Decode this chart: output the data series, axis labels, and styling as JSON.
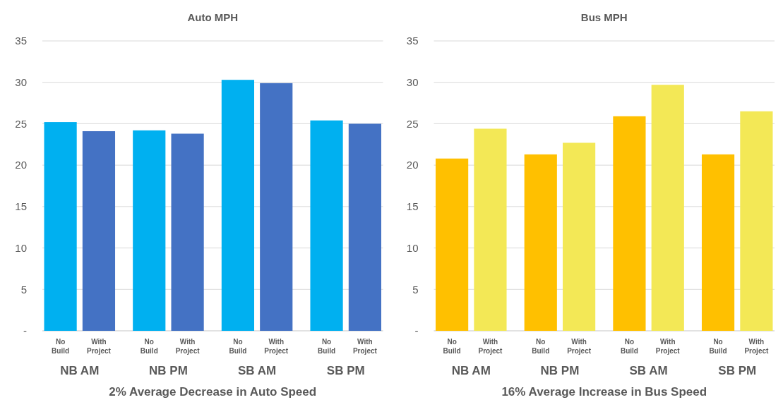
{
  "chart_data": [
    {
      "type": "bar",
      "title": "Auto MPH",
      "categories": [
        "NB AM",
        "NB PM",
        "SB AM",
        "SB PM"
      ],
      "series": [
        {
          "name": "No Build",
          "color": "#00b0f0",
          "values": [
            25.2,
            24.2,
            30.3,
            25.4
          ]
        },
        {
          "name": "With Project",
          "color": "#4472c4",
          "values": [
            24.1,
            23.8,
            29.9,
            25.0
          ]
        }
      ],
      "ylim": [
        0,
        35
      ],
      "yticks": [
        {
          "value": 0,
          "label": "-"
        },
        5,
        10,
        15,
        20,
        25,
        30,
        35
      ],
      "grid": "y",
      "legend": false,
      "annotations": [
        "2% Average Decrease in Auto Speed"
      ]
    },
    {
      "type": "bar",
      "title": "Bus MPH",
      "categories": [
        "NB AM",
        "NB PM",
        "SB AM",
        "SB PM"
      ],
      "series": [
        {
          "name": "No Build",
          "color": "#ffc000",
          "values": [
            20.8,
            21.3,
            25.9,
            21.3
          ]
        },
        {
          "name": "With Project",
          "color": "#f3e856",
          "values": [
            24.4,
            22.7,
            29.7,
            26.5
          ]
        }
      ],
      "ylim": [
        0,
        35
      ],
      "yticks": [
        {
          "value": 0,
          "label": "-"
        },
        5,
        10,
        15,
        20,
        25,
        30,
        35
      ],
      "grid": "y",
      "legend": false,
      "annotations": [
        "16% Average Increase in Bus Speed"
      ]
    }
  ]
}
